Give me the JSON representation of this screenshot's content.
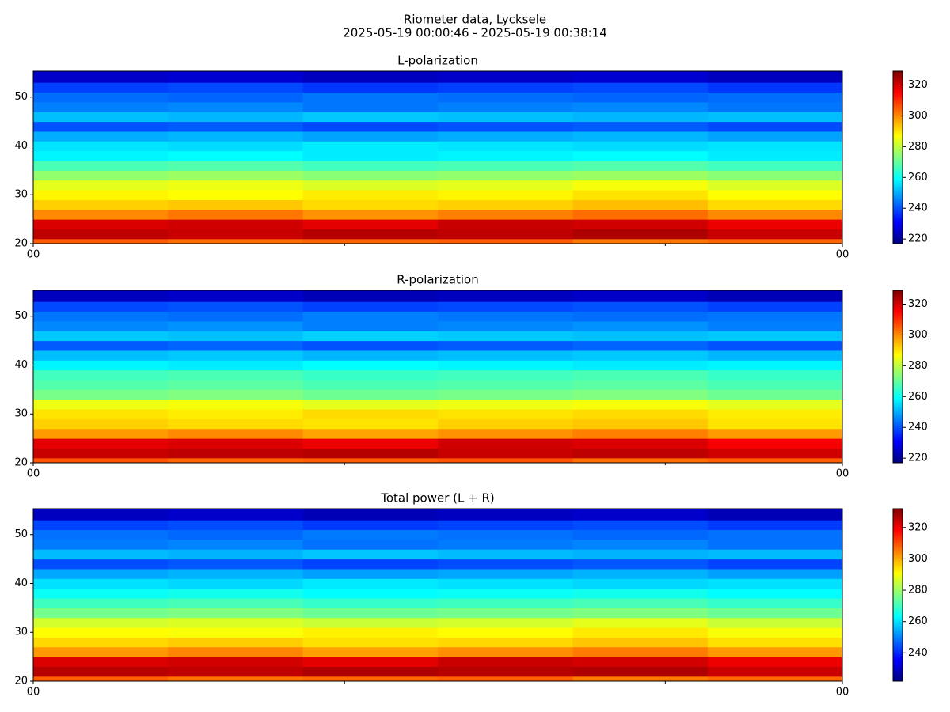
{
  "figure": {
    "title": "Riometer data, Lycksele",
    "subtitle": "2025-05-19 00:00:46 - 2025-05-19 00:38:14"
  },
  "chart_data": [
    {
      "type": "heatmap",
      "title": "L-polarization",
      "colormap": "jet",
      "x": [
        46,
        420,
        795,
        1170,
        1545,
        1920,
        2294
      ],
      "y": [
        20,
        21,
        23,
        25,
        27,
        29,
        31,
        33,
        35,
        37,
        39,
        41,
        43,
        45,
        47,
        49,
        51,
        53,
        55.3
      ],
      "z": [
        [
          305,
          303,
          304,
          305,
          302,
          304
        ],
        [
          322,
          321,
          323,
          322,
          324,
          321
        ],
        [
          319,
          320,
          318,
          321,
          320,
          317
        ],
        [
          300,
          302,
          299,
          301,
          303,
          300
        ],
        [
          292,
          293,
          291,
          292,
          294,
          291
        ],
        [
          288,
          287,
          289,
          288,
          290,
          287
        ],
        [
          284,
          285,
          283,
          284,
          286,
          283
        ],
        [
          275,
          276,
          274,
          275,
          276,
          274
        ],
        [
          267,
          268,
          266,
          267,
          268,
          266
        ],
        [
          258,
          259,
          257,
          258,
          259,
          257
        ],
        [
          256,
          255,
          257,
          256,
          255,
          256
        ],
        [
          250,
          251,
          249,
          250,
          251,
          249
        ],
        [
          240,
          241,
          239,
          240,
          241,
          239
        ],
        [
          252,
          251,
          253,
          252,
          251,
          252
        ],
        [
          245,
          246,
          244,
          245,
          246,
          244
        ],
        [
          243,
          242,
          244,
          243,
          242,
          243
        ],
        [
          238,
          239,
          237,
          238,
          239,
          237
        ],
        [
          225,
          226,
          224,
          225,
          226,
          224
        ]
      ],
      "xlim": [
        46,
        2294
      ],
      "xticks": [
        {
          "value": 46,
          "label": "00"
        },
        {
          "value": 2294,
          "label": "00"
        }
      ],
      "xminor_ticks": [
        911,
        1802
      ],
      "ylim": [
        20,
        55.3
      ],
      "yticks": [
        20,
        30,
        40,
        50
      ],
      "clim": [
        217,
        329
      ],
      "cticks": [
        220,
        240,
        260,
        280,
        300,
        320
      ]
    },
    {
      "type": "heatmap",
      "title": "R-polarization",
      "colormap": "jet",
      "x": [
        46,
        420,
        795,
        1170,
        1545,
        1920,
        2294
      ],
      "y": [
        20,
        21,
        23,
        25,
        27,
        29,
        31,
        33,
        35,
        37,
        39,
        41,
        43,
        45,
        47,
        49,
        51,
        53,
        55.3
      ],
      "z": [
        [
          306,
          304,
          305,
          306,
          303,
          305
        ],
        [
          321,
          322,
          323,
          321,
          322,
          320
        ],
        [
          318,
          319,
          317,
          320,
          319,
          316
        ],
        [
          298,
          300,
          297,
          299,
          301,
          298
        ],
        [
          292,
          291,
          290,
          292,
          293,
          290
        ],
        [
          290,
          289,
          291,
          290,
          291,
          289
        ],
        [
          285,
          286,
          284,
          285,
          286,
          284
        ],
        [
          272,
          273,
          271,
          272,
          273,
          271
        ],
        [
          268,
          269,
          267,
          268,
          269,
          267
        ],
        [
          266,
          267,
          265,
          266,
          267,
          265
        ],
        [
          258,
          257,
          259,
          258,
          257,
          258
        ],
        [
          252,
          253,
          251,
          252,
          253,
          251
        ],
        [
          241,
          242,
          240,
          241,
          242,
          240
        ],
        [
          253,
          252,
          254,
          253,
          252,
          253
        ],
        [
          246,
          247,
          245,
          246,
          247,
          245
        ],
        [
          244,
          243,
          245,
          244,
          243,
          244
        ],
        [
          239,
          240,
          238,
          239,
          240,
          238
        ],
        [
          224,
          225,
          223,
          224,
          225,
          223
        ]
      ],
      "xlim": [
        46,
        2294
      ],
      "xticks": [
        {
          "value": 46,
          "label": "00"
        },
        {
          "value": 2294,
          "label": "00"
        }
      ],
      "xminor_ticks": [
        911,
        1802
      ],
      "ylim": [
        20,
        55.3
      ],
      "yticks": [
        20,
        30,
        40,
        50
      ],
      "clim": [
        217,
        329
      ],
      "cticks": [
        220,
        240,
        260,
        280,
        300,
        320
      ]
    },
    {
      "type": "heatmap",
      "title": "Total power (L + R)",
      "colormap": "jet",
      "x": [
        46,
        420,
        795,
        1170,
        1545,
        1920,
        2294
      ],
      "y": [
        20,
        21,
        23,
        25,
        27,
        29,
        31,
        33,
        35,
        37,
        39,
        41,
        43,
        45,
        47,
        49,
        51,
        53,
        55.3
      ],
      "z": [
        [
          308,
          306,
          307,
          308,
          305,
          307
        ],
        [
          326,
          325,
          327,
          326,
          327,
          324
        ],
        [
          322,
          323,
          321,
          324,
          323,
          320
        ],
        [
          302,
          304,
          301,
          303,
          305,
          302
        ],
        [
          295,
          296,
          294,
          295,
          297,
          294
        ],
        [
          291,
          290,
          292,
          291,
          293,
          290
        ],
        [
          286,
          287,
          285,
          286,
          288,
          285
        ],
        [
          276,
          277,
          275,
          276,
          277,
          275
        ],
        [
          270,
          271,
          269,
          270,
          271,
          269
        ],
        [
          264,
          265,
          263,
          264,
          265,
          263
        ],
        [
          260,
          259,
          261,
          260,
          259,
          260
        ],
        [
          254,
          255,
          253,
          254,
          255,
          253
        ],
        [
          244,
          245,
          243,
          244,
          245,
          243
        ],
        [
          256,
          255,
          257,
          256,
          255,
          256
        ],
        [
          249,
          250,
          248,
          249,
          250,
          248
        ],
        [
          248,
          247,
          249,
          248,
          247,
          248
        ],
        [
          243,
          244,
          242,
          243,
          244,
          242
        ],
        [
          229,
          230,
          228,
          229,
          230,
          228
        ]
      ],
      "xlim": [
        46,
        2294
      ],
      "xticks": [
        {
          "value": 46,
          "label": "00"
        },
        {
          "value": 2294,
          "label": "00"
        }
      ],
      "xminor_ticks": [
        911,
        1802
      ],
      "ylim": [
        20,
        55.3
      ],
      "yticks": [
        20,
        30,
        40,
        50
      ],
      "clim": [
        222,
        332
      ],
      "cticks": [
        240,
        260,
        280,
        300,
        320
      ]
    }
  ]
}
